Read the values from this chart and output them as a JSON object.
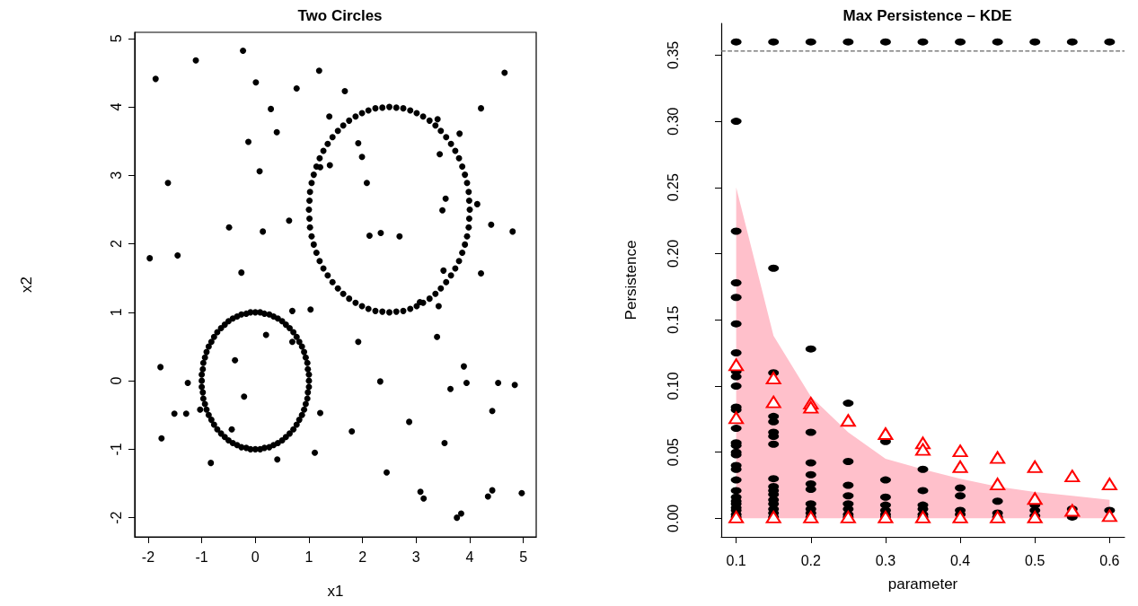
{
  "chart_data": [
    {
      "type": "scatter",
      "title": "Two Circles",
      "xlabel": "x1",
      "ylabel": "x2",
      "xlim": [
        -2.25,
        5.24
      ],
      "ylim": [
        -2.28,
        5.09
      ],
      "xticks": [
        -2,
        -1,
        0,
        1,
        2,
        3,
        4,
        5
      ],
      "yticks": [
        -2,
        -1,
        0,
        1,
        2,
        3,
        4,
        5
      ],
      "series": [
        {
          "type": "scatter",
          "color": "#000000",
          "marker": "circle",
          "x": [
            -1.86,
            -1.11,
            -0.23,
            0.01,
            1.19,
            0.77,
            1.67,
            4.65,
            0.29,
            1.38,
            4.21,
            3.4,
            0.4,
            3.81,
            -0.13,
            1.92,
            3.44,
            1.99,
            1.39,
            1.21,
            0.08,
            -1.63,
            2.08,
            3.55,
            3.49,
            4.14,
            0.63,
            4.4,
            -0.49,
            0.14,
            2.13,
            2.34,
            2.69,
            4.8,
            -1.97,
            -1.45,
            -0.26,
            3.51,
            4.21,
            3.07,
            3.42,
            0.69,
            1.03,
            0.2,
            0.69,
            1.92,
            3.39,
            -0.38,
            -1.77,
            3.89,
            -1.26,
            2.33,
            3.94,
            4.53,
            4.84,
            3.64,
            -0.21,
            -1.03,
            -1.51,
            -1.29,
            1.21,
            4.42,
            2.87,
            -0.44,
            1.8,
            -1.75,
            3.53,
            1.11,
            0.41,
            -0.83,
            2.45,
            3.08,
            3.14,
            4.42,
            4.34,
            4.97,
            3.84,
            3.76
          ],
          "values": [
            4.41,
            4.68,
            4.82,
            4.36,
            4.53,
            4.27,
            4.23,
            4.5,
            3.97,
            3.86,
            3.98,
            3.82,
            3.63,
            3.61,
            3.49,
            3.47,
            3.31,
            3.27,
            3.15,
            3.12,
            3.06,
            2.89,
            2.89,
            2.66,
            2.49,
            2.58,
            2.34,
            2.28,
            2.24,
            2.18,
            2.12,
            2.16,
            2.11,
            2.18,
            1.79,
            1.83,
            1.58,
            1.61,
            1.57,
            1.15,
            1.09,
            1.02,
            1.04,
            0.67,
            0.57,
            0.57,
            0.64,
            0.3,
            0.2,
            0.21,
            -0.03,
            -0.01,
            -0.03,
            -0.03,
            -0.06,
            -0.12,
            -0.23,
            -0.42,
            -0.48,
            -0.48,
            -0.47,
            -0.44,
            -0.6,
            -0.71,
            -0.74,
            -0.84,
            -0.91,
            -1.05,
            -1.15,
            -1.2,
            -1.34,
            -1.62,
            -1.72,
            -1.6,
            -1.69,
            -1.64,
            -1.94,
            -2
          ]
        },
        {
          "type": "scatter",
          "color": "#000000",
          "marker": "circle",
          "x": [
            1,
            1,
            0.98,
            0.97,
            0.94,
            0.91,
            0.87,
            0.82,
            0.77,
            0.71,
            0.64,
            0.57,
            0.5,
            0.42,
            0.34,
            0.26,
            0.17,
            0.09,
            0,
            -0.09,
            -0.17,
            -0.26,
            -0.34,
            -0.42,
            -0.5,
            -0.57,
            -0.64,
            -0.71,
            -0.77,
            -0.82,
            -0.87,
            -0.91,
            -0.94,
            -0.97,
            -0.98,
            -1,
            -1,
            -1,
            -0.98,
            -0.97,
            -0.94,
            -0.91,
            -0.87,
            -0.82,
            -0.77,
            -0.71,
            -0.64,
            -0.57,
            -0.5,
            -0.42,
            -0.34,
            -0.26,
            -0.17,
            -0.09,
            0,
            0.09,
            0.17,
            0.26,
            0.34,
            0.42,
            0.5,
            0.57,
            0.64,
            0.71,
            0.77,
            0.82,
            0.87,
            0.91,
            0.94,
            0.97,
            0.98,
            1
          ],
          "values": [
            0,
            0.09,
            0.17,
            0.26,
            0.34,
            0.42,
            0.5,
            0.57,
            0.64,
            0.71,
            0.77,
            0.82,
            0.87,
            0.91,
            0.94,
            0.97,
            0.98,
            1,
            1,
            1,
            0.98,
            0.97,
            0.94,
            0.91,
            0.87,
            0.82,
            0.77,
            0.71,
            0.64,
            0.57,
            0.5,
            0.42,
            0.34,
            0.26,
            0.17,
            0.09,
            0,
            -0.09,
            -0.17,
            -0.26,
            -0.34,
            -0.42,
            -0.5,
            -0.57,
            -0.64,
            -0.71,
            -0.77,
            -0.82,
            -0.87,
            -0.91,
            -0.94,
            -0.97,
            -0.98,
            -1,
            -1,
            -1,
            -0.98,
            -0.97,
            -0.94,
            -0.91,
            -0.87,
            -0.82,
            -0.77,
            -0.71,
            -0.64,
            -0.57,
            -0.5,
            -0.42,
            -0.34,
            -0.26,
            -0.17,
            -0.09
          ]
        },
        {
          "type": "scatter",
          "color": "#000000",
          "marker": "circle",
          "x": [
            4,
            3.99,
            3.98,
            3.95,
            3.91,
            3.86,
            3.8,
            3.73,
            3.65,
            3.56,
            3.46,
            3.36,
            3.25,
            3.13,
            3.01,
            2.89,
            2.76,
            2.63,
            2.5,
            2.37,
            2.24,
            2.11,
            1.99,
            1.87,
            1.75,
            1.64,
            1.54,
            1.44,
            1.35,
            1.27,
            1.2,
            1.14,
            1.09,
            1.05,
            1.02,
            1.01,
            1,
            1.01,
            1.02,
            1.05,
            1.09,
            1.14,
            1.2,
            1.27,
            1.35,
            1.44,
            1.54,
            1.64,
            1.75,
            1.87,
            1.99,
            2.11,
            2.24,
            2.37,
            2.5,
            2.63,
            2.76,
            2.89,
            3.01,
            3.13,
            3.25,
            3.36,
            3.46,
            3.56,
            3.65,
            3.73,
            3.8,
            3.86,
            3.91,
            3.95,
            3.98,
            3.99
          ],
          "values": [
            2.5,
            2.63,
            2.76,
            2.89,
            3.01,
            3.13,
            3.25,
            3.36,
            3.46,
            3.56,
            3.65,
            3.73,
            3.8,
            3.86,
            3.91,
            3.95,
            3.98,
            3.99,
            4,
            3.99,
            3.98,
            3.95,
            3.91,
            3.86,
            3.8,
            3.73,
            3.65,
            3.56,
            3.46,
            3.36,
            3.25,
            3.13,
            3.01,
            2.89,
            2.76,
            2.63,
            2.5,
            2.37,
            2.24,
            2.11,
            1.99,
            1.87,
            1.75,
            1.64,
            1.54,
            1.44,
            1.35,
            1.27,
            1.2,
            1.14,
            1.09,
            1.05,
            1.02,
            1.01,
            1,
            1.01,
            1.02,
            1.05,
            1.09,
            1.14,
            1.2,
            1.27,
            1.35,
            1.44,
            1.54,
            1.64,
            1.75,
            1.87,
            1.99,
            2.11,
            2.24,
            2.37
          ]
        }
      ]
    },
    {
      "type": "scatter",
      "title": "Max Persistence – KDE",
      "xlabel": "parameter",
      "ylabel": "Persistence",
      "xlim": [
        0.08,
        0.62
      ],
      "ylim": [
        -0.014,
        0.374
      ],
      "xticks": [
        0.1,
        0.2,
        0.3,
        0.4,
        0.5,
        0.6
      ],
      "yticks": [
        {
          "value": 0,
          "label": "0.00"
        },
        0.05,
        {
          "value": 0.1,
          "label": "0.10"
        },
        0.15,
        {
          "value": 0.2,
          "label": "0.20"
        },
        0.25,
        {
          "value": 0.3,
          "label": "0.30"
        },
        0.35
      ],
      "ref_lines": [
        {
          "axis": "y",
          "value": 0.353,
          "color": "#666666",
          "line_style": "dashed"
        }
      ],
      "series": [
        {
          "type": "area",
          "color": "#ffc0cb",
          "marker": "none",
          "x": [
            0.1,
            0.15,
            0.2,
            0.25,
            0.3,
            0.35,
            0.4,
            0.45,
            0.5,
            0.55,
            0.6
          ],
          "values": [
            0.25,
            0.138,
            0.092,
            0.065,
            0.045,
            0.037,
            0.03,
            0.024,
            0.02,
            0.017,
            0.014
          ]
        },
        {
          "type": "scatter",
          "color": "#000000",
          "marker": "circle",
          "x": [
            0.1,
            0.1,
            0.1,
            0.1,
            0.1,
            0.1,
            0.1,
            0.1,
            0.1,
            0.1,
            0.1,
            0.1,
            0.1,
            0.1,
            0.1,
            0.1,
            0.1,
            0.1,
            0.1,
            0.1,
            0.1,
            0.1,
            0.1,
            0.1,
            0.1,
            0.1,
            0.1,
            0.1,
            0.15,
            0.15,
            0.15,
            0.15,
            0.15,
            0.15,
            0.15,
            0.15,
            0.15,
            0.15,
            0.15,
            0.15,
            0.15,
            0.15,
            0.15,
            0.15,
            0.15,
            0.2,
            0.2,
            0.2,
            0.2,
            0.2,
            0.2,
            0.2,
            0.2,
            0.2,
            0.2,
            0.2,
            0.25,
            0.25,
            0.25,
            0.25,
            0.25,
            0.25,
            0.25,
            0.25,
            0.25,
            0.3,
            0.3,
            0.3,
            0.3,
            0.3,
            0.3,
            0.3,
            0.3,
            0.35,
            0.35,
            0.35,
            0.35,
            0.35,
            0.35,
            0.35,
            0.4,
            0.4,
            0.4,
            0.4,
            0.4,
            0.45,
            0.45,
            0.45,
            0.45,
            0.5,
            0.5,
            0.5,
            0.5,
            0.55,
            0.55,
            0.55,
            0.6,
            0.6
          ],
          "values": [
            0.36,
            0.3,
            0.217,
            0.178,
            0.167,
            0.147,
            0.125,
            0.111,
            0.107,
            0.1,
            0.084,
            0.082,
            0.068,
            0.057,
            0.055,
            0.05,
            0.048,
            0.04,
            0.037,
            0.029,
            0.021,
            0.016,
            0.013,
            0.011,
            0.008,
            0.006,
            0.003,
            0.001,
            0.36,
            0.189,
            0.11,
            0.077,
            0.073,
            0.065,
            0.062,
            0.056,
            0.03,
            0.024,
            0.021,
            0.018,
            0.014,
            0.011,
            0.007,
            0.004,
            0.001,
            0.36,
            0.128,
            0.065,
            0.042,
            0.033,
            0.026,
            0.022,
            0.011,
            0.007,
            0.004,
            0.001,
            0.36,
            0.087,
            0.043,
            0.025,
            0.017,
            0.011,
            0.007,
            0.003,
            0.001,
            0.36,
            0.058,
            0.029,
            0.016,
            0.01,
            0.006,
            0.003,
            0.001,
            0.36,
            0.037,
            0.021,
            0.01,
            0.007,
            0.003,
            0.001,
            0.36,
            0.023,
            0.017,
            0.006,
            0.003,
            0.36,
            0.013,
            0.004,
            0.001,
            0.36,
            0.01,
            0.006,
            0.002,
            0.36,
            0.007,
            0.001,
            0.36,
            0.006
          ]
        },
        {
          "type": "scatter",
          "color": "#ff0000",
          "marker": "triangle",
          "x": [
            0.1,
            0.1,
            0.1,
            0.15,
            0.15,
            0.15,
            0.2,
            0.2,
            0.2,
            0.25,
            0.25,
            0.3,
            0.3,
            0.35,
            0.35,
            0.35,
            0.4,
            0.4,
            0.4,
            0.45,
            0.45,
            0.45,
            0.5,
            0.5,
            0.5,
            0.55,
            0.55,
            0.6,
            0.6
          ],
          "values": [
            0.116,
            0.076,
            0.001,
            0.106,
            0.088,
            0.001,
            0.087,
            0.084,
            0.001,
            0.074,
            0.001,
            0.064,
            0.001,
            0.057,
            0.052,
            0.001,
            0.051,
            0.039,
            0.001,
            0.046,
            0.026,
            0.001,
            0.039,
            0.015,
            0.001,
            0.032,
            0.006,
            0.026,
            0.002
          ]
        }
      ]
    }
  ]
}
